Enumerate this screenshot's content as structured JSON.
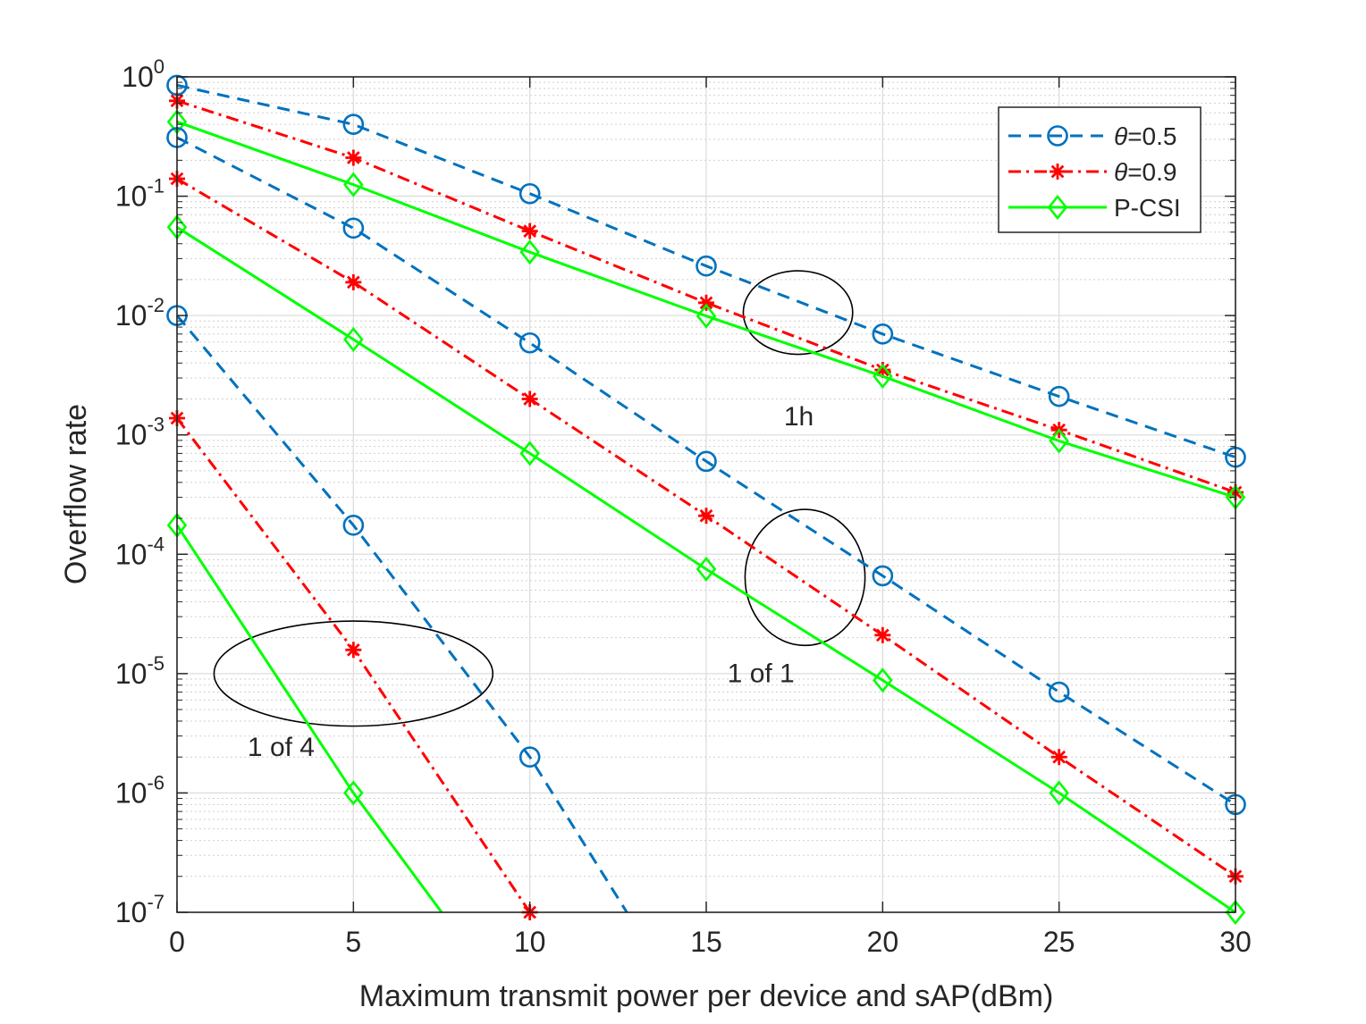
{
  "chart_data": {
    "type": "line",
    "title": "",
    "xlabel": "Maximum transmit power per device and sAP(dBm)",
    "ylabel": "Overflow rate",
    "xlim": [
      0,
      30
    ],
    "ylim_log10": [
      -7,
      0
    ],
    "yscale": "log",
    "grid": true,
    "minor_grid": true,
    "legend_position": "top-right",
    "x_ticks": [
      0,
      5,
      10,
      15,
      20,
      25,
      30
    ],
    "x_tick_labels": [
      "0",
      "5",
      "10",
      "15",
      "20",
      "25",
      "30"
    ],
    "y_ticks_exp": [
      -7,
      -6,
      -5,
      -4,
      -3,
      -2,
      -1,
      0
    ],
    "y_tick_base": "10",
    "y_tick_exponents": [
      "-7",
      "-6",
      "-5",
      "-4",
      "-3",
      "-2",
      "-1",
      "0"
    ],
    "legend": [
      {
        "symbol": "θ",
        "label": "=0.5",
        "color": "#0072BD",
        "dash": "14,9",
        "marker": "circle"
      },
      {
        "symbol": "θ",
        "label": "=0.9",
        "color": "#FF0000",
        "dash": "14,6,3,6",
        "marker": "star"
      },
      {
        "symbol": "",
        "label": "P-CSI",
        "color": "#00FF00",
        "dash": "",
        "marker": "diamond"
      }
    ],
    "series": [
      {
        "name": "θ=0.5 (1h)",
        "style": 0,
        "x": [
          0,
          5,
          10,
          15,
          20,
          25,
          30
        ],
        "y": [
          0.85,
          0.4,
          0.105,
          0.026,
          0.007,
          0.0021,
          0.00065
        ]
      },
      {
        "name": "θ=0.9 (1h)",
        "style": 1,
        "x": [
          0,
          5,
          10,
          15,
          20,
          25,
          30
        ],
        "y": [
          0.63,
          0.21,
          0.051,
          0.0128,
          0.0035,
          0.0011,
          0.00033
        ]
      },
      {
        "name": "P-CSI (1h)",
        "style": 2,
        "x": [
          0,
          5,
          10,
          15,
          20,
          25,
          30
        ],
        "y": [
          0.42,
          0.125,
          0.034,
          0.0099,
          0.0031,
          0.00089,
          0.0003
        ]
      },
      {
        "name": "θ=0.5 (1 of 1)",
        "style": 0,
        "x": [
          0,
          5,
          10,
          15,
          20,
          25,
          30
        ],
        "y": [
          0.31,
          0.054,
          0.0059,
          0.0006,
          6.6e-05,
          7e-06,
          8e-07
        ]
      },
      {
        "name": "θ=0.9 (1 of 1)",
        "style": 1,
        "x": [
          0,
          5,
          10,
          15,
          20,
          25,
          30
        ],
        "y": [
          0.14,
          0.019,
          0.002,
          0.00021,
          2.1e-05,
          2e-06,
          2e-07
        ]
      },
      {
        "name": "P-CSI (1 of 1)",
        "style": 2,
        "x": [
          0,
          5,
          10,
          15,
          20,
          25,
          30
        ],
        "y": [
          0.055,
          0.0063,
          0.0007,
          7.5e-05,
          8.8e-06,
          1e-06,
          1e-07
        ]
      },
      {
        "name": "θ=0.5 (1 of 4)",
        "style": 0,
        "x": [
          0,
          5,
          10,
          12.75
        ],
        "y": [
          0.01,
          0.000175,
          2e-06,
          1e-07
        ],
        "marker_count": 3
      },
      {
        "name": "θ=0.9 (1 of 4)",
        "style": 1,
        "x": [
          0,
          5,
          10
        ],
        "y": [
          0.00138,
          1.58e-05,
          1e-07
        ],
        "marker_count": 3
      },
      {
        "name": "P-CSI (1 of 4)",
        "style": 2,
        "x": [
          0,
          5,
          7.5
        ],
        "y": [
          0.000175,
          1e-06,
          1e-07
        ],
        "marker_count": 2
      }
    ],
    "annotations": [
      {
        "text": "1h",
        "x": 17.2,
        "y": 0.0012
      },
      {
        "text": "1 of 1",
        "x": 15.6,
        "y": 8.5e-06
      },
      {
        "text": "1 of 4",
        "x": 2.0,
        "y": 2.05e-06
      }
    ],
    "ellipses": [
      {
        "cx": 17.6,
        "cy": 0.0106,
        "rx": 1.55,
        "ry_decades": 0.35
      },
      {
        "cx": 17.8,
        "cy": 6.4e-05,
        "rx": 1.7,
        "ry_decades": 0.57
      },
      {
        "cx": 5.0,
        "cy": 1e-05,
        "rx": 3.95,
        "ry_decades": 0.44
      }
    ]
  }
}
